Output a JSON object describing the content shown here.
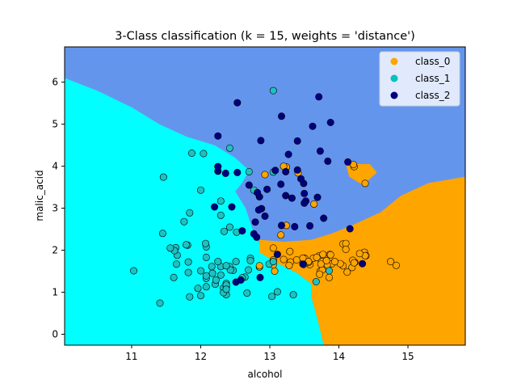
{
  "chart_data": {
    "type": "scatter",
    "title": "3-Class classification (k = 15, weights = 'distance')",
    "xlabel": "alcohol",
    "ylabel": "malic_acid",
    "xlim": [
      10.03,
      15.83
    ],
    "ylim": [
      -0.26,
      6.84
    ],
    "xticks": [
      11,
      12,
      13,
      14,
      15
    ],
    "yticks": [
      0,
      1,
      2,
      3,
      4,
      5,
      6
    ],
    "grid": false,
    "legend_position": "top-right",
    "region_colors": {
      "class_0": "#ffa500",
      "class_1": "#00ffff",
      "class_2": "#6495ed"
    },
    "regions": {
      "class_1": [
        [
          10.03,
          -0.26
        ],
        [
          10.03,
          6.1
        ],
        [
          10.5,
          5.8
        ],
        [
          11.0,
          5.4
        ],
        [
          11.4,
          5.0
        ],
        [
          11.8,
          4.7
        ],
        [
          12.2,
          4.5
        ],
        [
          12.5,
          4.2
        ],
        [
          12.7,
          3.9
        ],
        [
          12.6,
          3.6
        ],
        [
          12.5,
          3.4
        ],
        [
          12.65,
          3.0
        ],
        [
          12.75,
          2.5
        ],
        [
          12.9,
          2.0
        ],
        [
          13.1,
          1.7
        ],
        [
          13.4,
          1.45
        ],
        [
          13.6,
          1.2
        ],
        [
          13.6,
          0.9
        ],
        [
          13.7,
          0.3
        ],
        [
          13.78,
          -0.26
        ]
      ],
      "class_0": [
        [
          15.83,
          -0.26
        ],
        [
          15.83,
          3.75
        ],
        [
          15.3,
          3.6
        ],
        [
          14.9,
          3.3
        ],
        [
          14.6,
          2.9
        ],
        [
          14.2,
          2.6
        ],
        [
          13.9,
          2.4
        ],
        [
          13.6,
          2.25
        ],
        [
          13.2,
          2.2
        ],
        [
          12.85,
          2.25
        ],
        [
          12.85,
          1.95
        ],
        [
          13.1,
          1.7
        ],
        [
          13.4,
          1.45
        ],
        [
          13.6,
          1.2
        ],
        [
          13.6,
          0.9
        ],
        [
          13.7,
          0.3
        ],
        [
          13.78,
          -0.26
        ]
      ],
      "class_0_island": [
        [
          14.1,
          4.05
        ],
        [
          14.45,
          4.05
        ],
        [
          14.55,
          3.85
        ],
        [
          14.35,
          3.55
        ],
        [
          14.15,
          3.75
        ]
      ]
    },
    "series": [
      {
        "name": "class_0",
        "color": "#ffa500",
        "x": [
          14.23,
          13.2,
          13.16,
          14.37,
          13.24,
          14.2,
          14.39,
          14.06,
          14.83,
          13.86,
          14.1,
          14.12,
          13.75,
          14.75,
          14.38,
          13.63,
          14.3,
          13.83,
          14.19,
          13.64,
          14.06,
          12.93,
          13.71,
          12.85,
          13.5,
          13.05,
          13.39,
          13.3,
          13.87,
          14.02,
          13.73,
          13.58,
          13.68,
          13.76,
          13.51,
          13.48,
          13.28,
          13.05,
          13.07,
          14.22,
          13.56,
          13.41,
          13.88,
          13.24,
          13.05,
          14.21,
          14.38,
          13.9,
          14.1,
          13.94,
          13.05,
          13.83,
          13.82,
          13.77,
          13.74,
          13.56,
          14.22,
          13.29,
          13.72,
          12.85,
          13.2
        ],
        "y": [
          1.71,
          1.78,
          2.36,
          1.95,
          2.59,
          1.76,
          1.87,
          2.15,
          1.64,
          1.35,
          2.16,
          1.48,
          1.73,
          1.73,
          1.87,
          1.81,
          1.92,
          1.57,
          1.59,
          3.1,
          1.63,
          3.8,
          1.86,
          1.6,
          1.81,
          2.05,
          1.77,
          1.72,
          1.9,
          1.68,
          1.5,
          1.66,
          1.83,
          1.53,
          1.8,
          1.81,
          1.64,
          1.65,
          1.5,
          3.99,
          1.71,
          3.84,
          1.89,
          3.98,
          1.77,
          4.04,
          3.59,
          1.68,
          2.02,
          1.73,
          1.73,
          1.65,
          1.75,
          1.9,
          1.67,
          1.73,
          1.7,
          1.97,
          1.43,
          1.63,
          4.0
        ]
      },
      {
        "name": "class_1",
        "color": "#20c0c0",
        "x": [
          12.37,
          12.33,
          12.64,
          13.67,
          12.37,
          12.17,
          12.37,
          13.11,
          12.37,
          13.34,
          12.21,
          12.29,
          13.86,
          13.49,
          12.99,
          11.96,
          11.66,
          13.03,
          11.84,
          12.33,
          12.7,
          12.0,
          12.72,
          12.08,
          13.05,
          11.84,
          12.67,
          12.16,
          11.65,
          11.64,
          12.08,
          12.08,
          12.0,
          12.69,
          12.29,
          11.62,
          12.47,
          11.81,
          12.29,
          12.37,
          12.29,
          12.08,
          12.6,
          12.34,
          11.82,
          12.51,
          12.42,
          12.25,
          12.72,
          12.22,
          11.61,
          11.46,
          12.52,
          11.76,
          11.41,
          12.08,
          11.03,
          11.82,
          12.42,
          12.77,
          12.0,
          11.45,
          11.56,
          12.42,
          13.05,
          11.87,
          12.07,
          12.43,
          11.79,
          12.37,
          12.04,
          13.05
        ],
        "y": [
          0.94,
          1.1,
          1.36,
          1.25,
          1.13,
          1.45,
          1.21,
          1.01,
          1.17,
          0.94,
          1.19,
          1.61,
          1.51,
          1.66,
          1.67,
          1.09,
          1.88,
          0.9,
          2.89,
          0.99,
          3.87,
          0.92,
          1.81,
          1.13,
          3.86,
          0.89,
          0.98,
          1.61,
          1.67,
          2.06,
          1.33,
          1.83,
          1.51,
          1.53,
          2.83,
          1.99,
          1.52,
          2.12,
          1.41,
          1.07,
          3.17,
          2.08,
          1.34,
          2.45,
          1.72,
          1.73,
          2.55,
          1.73,
          1.75,
          1.29,
          1.35,
          3.74,
          2.43,
          2.68,
          0.74,
          1.39,
          1.51,
          1.47,
          1.61,
          3.43,
          3.43,
          2.4,
          2.05,
          4.43,
          5.8,
          4.31,
          2.16,
          1.53,
          2.13,
          1.63,
          4.3,
          1.73
        ]
      },
      {
        "name": "class_2",
        "color": "#000080",
        "x": [
          12.86,
          12.88,
          12.81,
          12.7,
          12.51,
          12.6,
          12.25,
          12.53,
          13.49,
          12.84,
          12.93,
          13.36,
          13.52,
          13.62,
          12.25,
          13.16,
          13.88,
          12.87,
          13.32,
          13.08,
          13.5,
          12.79,
          13.11,
          13.23,
          12.58,
          13.17,
          13.84,
          12.45,
          14.34,
          13.48,
          12.36,
          13.69,
          12.85,
          12.96,
          13.78,
          13.73,
          13.45,
          12.82,
          13.58,
          13.4,
          12.2,
          12.77,
          14.16,
          13.71,
          13.4,
          13.27,
          13.17,
          14.13,
          12.53,
          13.23,
          13.5,
          12.25
        ],
        "y": [
          1.35,
          2.99,
          2.31,
          3.55,
          1.24,
          2.46,
          4.72,
          5.51,
          3.59,
          2.96,
          2.81,
          2.56,
          3.17,
          4.95,
          3.88,
          3.57,
          5.04,
          4.61,
          3.24,
          3.9,
          3.12,
          2.67,
          1.9,
          3.3,
          1.29,
          5.19,
          4.12,
          3.03,
          1.68,
          1.67,
          3.83,
          3.26,
          3.27,
          3.45,
          2.76,
          4.36,
          3.7,
          3.37,
          2.58,
          4.6,
          3.03,
          2.39,
          2.51,
          5.65,
          3.91,
          4.28,
          2.59,
          4.1,
          3.85,
          3.87,
          3.35,
          3.99
        ]
      }
    ]
  }
}
